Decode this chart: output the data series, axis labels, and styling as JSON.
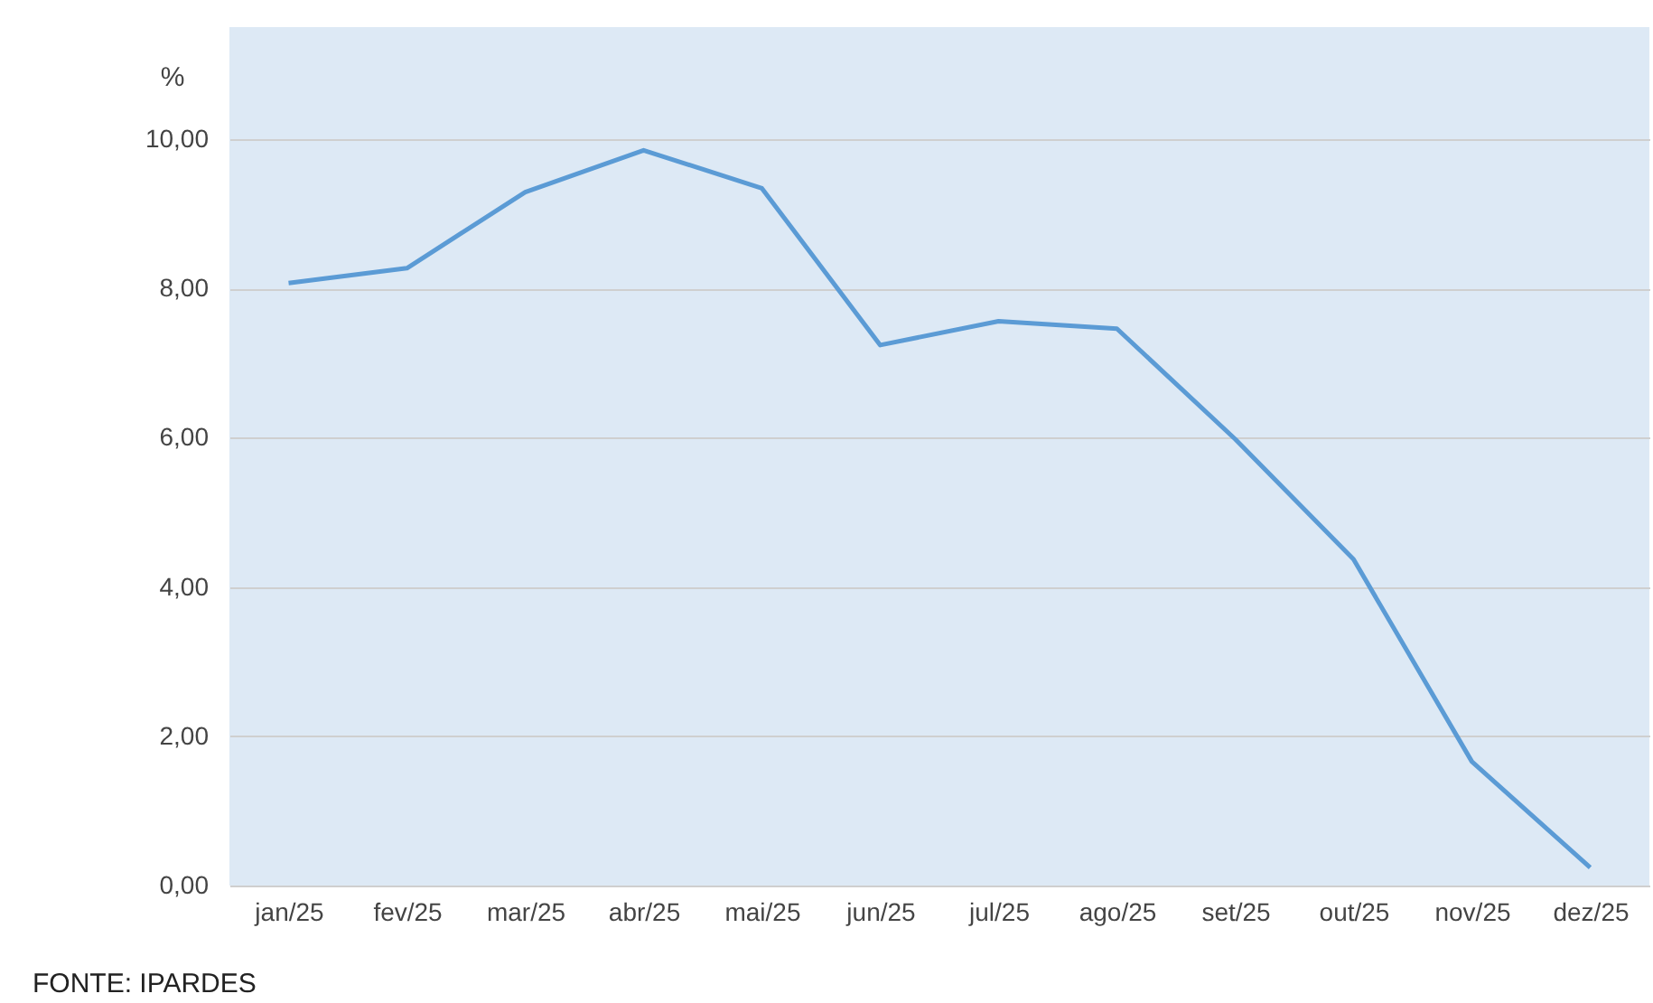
{
  "chart_data": {
    "type": "line",
    "ylabel": "%",
    "categories": [
      "jan/25",
      "fev/25",
      "mar/25",
      "abr/25",
      "mai/25",
      "jun/25",
      "jul/25",
      "ago/25",
      "set/25",
      "out/25",
      "nov/25",
      "dez/25"
    ],
    "series": [
      {
        "color": "#5b9bd5",
        "values": [
          8.07,
          8.27,
          9.29,
          9.85,
          9.34,
          7.24,
          7.56,
          7.46,
          5.98,
          4.37,
          1.66,
          0.24
        ]
      }
    ],
    "ylim": [
      0,
      11.5
    ],
    "yticks": [
      {
        "value": 0,
        "label": "0,00"
      },
      {
        "value": 2,
        "label": "2,00"
      },
      {
        "value": 4,
        "label": "4,00"
      },
      {
        "value": 6,
        "label": "6,00"
      },
      {
        "value": 8,
        "label": "8,00"
      },
      {
        "value": 10,
        "label": "10,00"
      }
    ],
    "grid": "y",
    "marker": "none",
    "line_style": "solid",
    "annotations": [
      "FONTE: IPARDES"
    ]
  }
}
